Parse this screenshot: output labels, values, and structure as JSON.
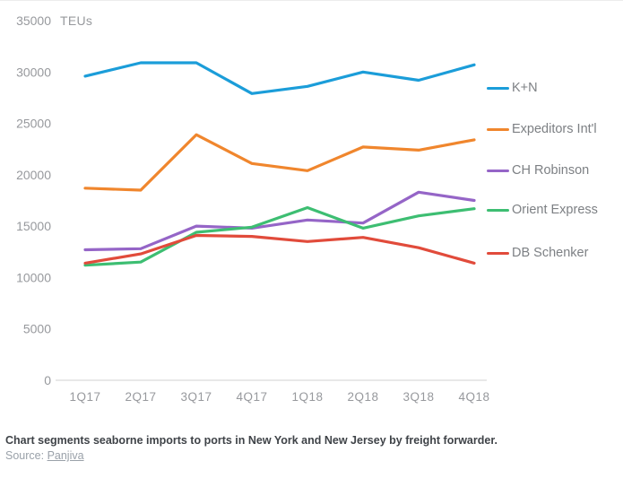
{
  "chart_data": {
    "type": "line",
    "title": "",
    "ylabel_unit": "TEUs",
    "xlabel": "",
    "ylim": [
      0,
      35000
    ],
    "y_ticks": [
      0,
      5000,
      10000,
      15000,
      20000,
      25000,
      30000,
      35000
    ],
    "grid": false,
    "legend_position": "right",
    "categories": [
      "1Q17",
      "2Q17",
      "3Q17",
      "4Q17",
      "1Q18",
      "2Q18",
      "3Q18",
      "4Q18"
    ],
    "series": [
      {
        "name": "K+N",
        "color": "#1b9dd9",
        "values": [
          29600,
          30900,
          30900,
          27900,
          28600,
          30000,
          29200,
          30700
        ]
      },
      {
        "name": "Expeditors Int'l",
        "color": "#f0862d",
        "values": [
          18700,
          18500,
          23900,
          21100,
          20400,
          22700,
          22400,
          23400
        ]
      },
      {
        "name": "CH Robinson",
        "color": "#9565c7",
        "values": [
          12700,
          12800,
          15000,
          14800,
          15600,
          15300,
          18300,
          17500
        ]
      },
      {
        "name": "Orient Express",
        "color": "#3dbe72",
        "values": [
          11200,
          11500,
          14400,
          14900,
          16800,
          14800,
          16000,
          16700
        ]
      },
      {
        "name": "DB Schenker",
        "color": "#e14b3b",
        "values": [
          11400,
          12300,
          14100,
          14000,
          13500,
          13900,
          12900,
          11400
        ]
      }
    ]
  },
  "styles": {
    "tick_color": "#97999d",
    "axis_line_color": "#d9d9d9",
    "legend_text_color": "#7d8084"
  },
  "caption": "Chart segments seaborne imports to ports in New York and New Jersey by freight forwarder.",
  "source": {
    "prefix": "Source: ",
    "link_text": "Panjiva"
  }
}
